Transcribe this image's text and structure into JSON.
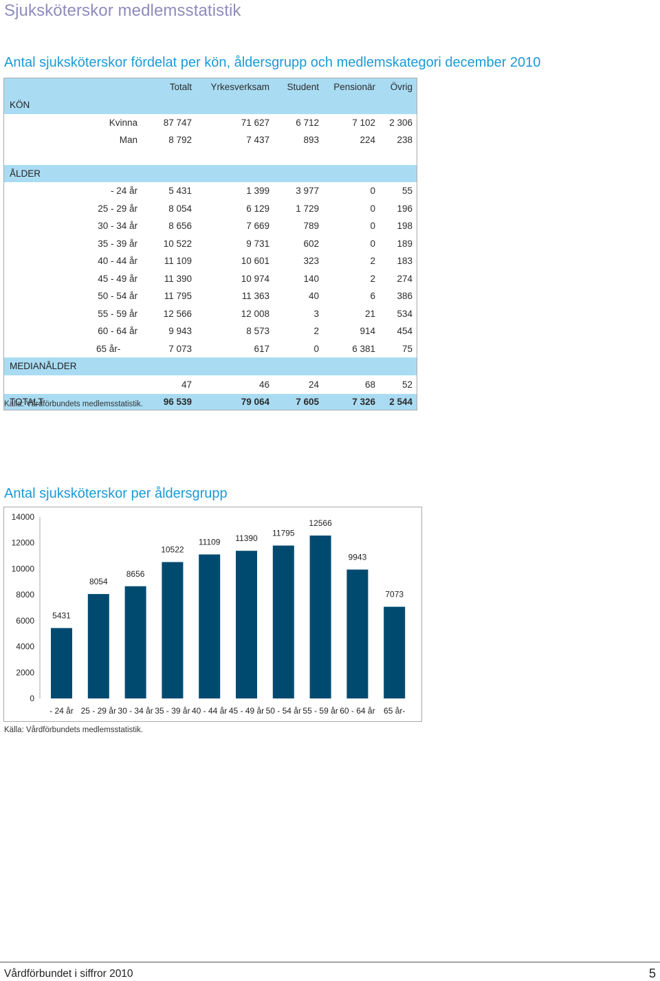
{
  "page_title": "Sjuksköterskor medlemsstatistik",
  "table_section": {
    "title": "Antal sjuksköterskor fördelat per kön, åldersgrupp och medlemskategori december 2010",
    "columns": [
      "Totalt",
      "Yrkesverksam",
      "Student",
      "Pensionär",
      "Övrig"
    ],
    "kon_label": "KÖN",
    "kon_rows": [
      {
        "label": "Kvinna",
        "values": [
          "87 747",
          "71 627",
          "6 712",
          "7 102",
          "2 306"
        ]
      },
      {
        "label": "Man",
        "values": [
          "8 792",
          "7 437",
          "893",
          "224",
          "238"
        ]
      }
    ],
    "alder_label": "ÅLDER",
    "alder_rows": [
      {
        "label": "- 24 år",
        "values": [
          "5 431",
          "1 399",
          "3 977",
          "0",
          "55"
        ]
      },
      {
        "label": "25 - 29 år",
        "values": [
          "8 054",
          "6 129",
          "1 729",
          "0",
          "196"
        ]
      },
      {
        "label": "30 - 34 år",
        "values": [
          "8 656",
          "7 669",
          "789",
          "0",
          "198"
        ]
      },
      {
        "label": "35 - 39 år",
        "values": [
          "10 522",
          "9 731",
          "602",
          "0",
          "189"
        ]
      },
      {
        "label": "40 - 44 år",
        "values": [
          "11 109",
          "10 601",
          "323",
          "2",
          "183"
        ]
      },
      {
        "label": "45 - 49 år",
        "values": [
          "11 390",
          "10 974",
          "140",
          "2",
          "274"
        ]
      },
      {
        "label": "50 - 54 år",
        "values": [
          "11 795",
          "11 363",
          "40",
          "6",
          "386"
        ]
      },
      {
        "label": "55 - 59 år",
        "values": [
          "12 566",
          "12 008",
          "3",
          "21",
          "534"
        ]
      },
      {
        "label": "60 - 64 år",
        "values": [
          "9 943",
          "8 573",
          "2",
          "914",
          "454"
        ]
      },
      {
        "label": "65  år-",
        "values": [
          "7 073",
          "617",
          "0",
          "6 381",
          "75"
        ]
      }
    ],
    "median_label": "MEDIANÅLDER",
    "median_values": [
      "47",
      "46",
      "24",
      "68",
      "52"
    ],
    "total_label": "TOTALT",
    "total_values": [
      "96 539",
      "79 064",
      "7 605",
      "7 326",
      "2 544"
    ],
    "source": "Källa: Vårdförbundets medlemsstatistik."
  },
  "chart_section": {
    "title": "Antal sjuksköterskor per åldersgrupp",
    "source": "Källa: Vårdförbundets medlemsstatistik.",
    "bar_color": "#004a70"
  },
  "chart_data": {
    "type": "bar",
    "title": "",
    "xlabel": "",
    "ylabel": "",
    "categories": [
      "- 24 år",
      "25 - 29 år",
      "30 - 34 år",
      "35 - 39 år",
      "40 - 44 år",
      "45 - 49 år",
      "50 - 54 år",
      "55 - 59 år",
      "60 - 64 år",
      "65  år-"
    ],
    "values": [
      5431,
      8054,
      8656,
      10522,
      11109,
      11390,
      11795,
      12566,
      9943,
      7073
    ],
    "ylim": [
      0,
      14000
    ],
    "yticks": [
      0,
      2000,
      4000,
      6000,
      8000,
      10000,
      12000,
      14000
    ],
    "grid": false,
    "legend": "none"
  },
  "footer": {
    "left": "Vårdförbundet i siffror 2010",
    "page_number": "5"
  }
}
